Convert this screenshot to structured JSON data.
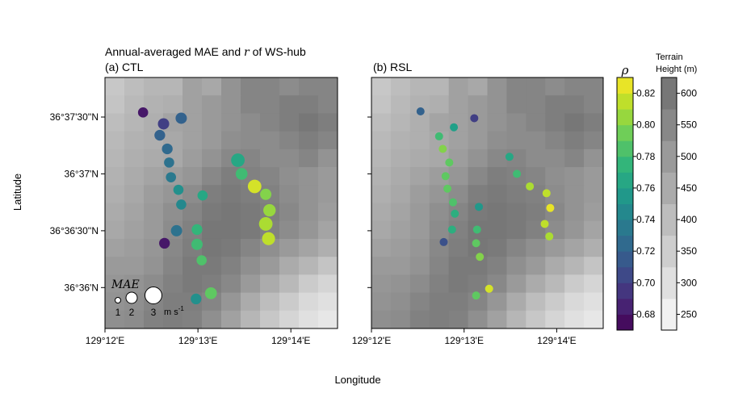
{
  "chart_data": {
    "type": "scatter",
    "title_main": "Annual-averaged MAE and ",
    "title_r": "r",
    "title_tail": " of WS-hub",
    "xlabel": "Longitude",
    "ylabel": "Latitude",
    "x_ticks": [
      "129°12'E",
      "129°13'E",
      "129°14'E"
    ],
    "x_tick_values": [
      129.2,
      129.21667,
      129.23333
    ],
    "y_ticks": [
      "36°36'N",
      "36°36'30''N",
      "36°37'N",
      "36°37'30''N"
    ],
    "y_tick_values": [
      36.6,
      36.60833,
      36.61667,
      36.625
    ],
    "xlim": [
      129.2,
      129.2417
    ],
    "ylim": [
      36.594,
      36.6308
    ],
    "panels": [
      {
        "label": "(a) CTL",
        "encoding": "marker size = MAE (m s-1), color = correlation",
        "points": [
          {
            "lon": 129.20683,
            "lat": 36.62567,
            "mae": 1.8,
            "rho": 0.68
          },
          {
            "lon": 129.21367,
            "lat": 36.62483,
            "mae": 2.0,
            "rho": 0.72
          },
          {
            "lon": 129.2105,
            "lat": 36.624,
            "mae": 2.0,
            "rho": 0.7
          },
          {
            "lon": 129.20983,
            "lat": 36.62233,
            "mae": 1.9,
            "rho": 0.72
          },
          {
            "lon": 129.21117,
            "lat": 36.62033,
            "mae": 1.9,
            "rho": 0.725
          },
          {
            "lon": 129.2115,
            "lat": 36.61833,
            "mae": 1.8,
            "rho": 0.73
          },
          {
            "lon": 129.21183,
            "lat": 36.61617,
            "mae": 1.8,
            "rho": 0.735
          },
          {
            "lon": 129.21317,
            "lat": 36.61433,
            "mae": 1.8,
            "rho": 0.75
          },
          {
            "lon": 129.21367,
            "lat": 36.61217,
            "mae": 1.8,
            "rho": 0.745
          },
          {
            "lon": 129.21283,
            "lat": 36.60833,
            "mae": 2.0,
            "rho": 0.73
          },
          {
            "lon": 129.21067,
            "lat": 36.6065,
            "mae": 1.9,
            "rho": 0.68
          },
          {
            "lon": 129.2175,
            "lat": 36.6135,
            "mae": 1.8,
            "rho": 0.765
          },
          {
            "lon": 129.2165,
            "lat": 36.6085,
            "mae": 1.9,
            "rho": 0.775
          },
          {
            "lon": 129.2165,
            "lat": 36.60633,
            "mae": 2.0,
            "rho": 0.78
          },
          {
            "lon": 129.21733,
            "lat": 36.604,
            "mae": 1.8,
            "rho": 0.785
          },
          {
            "lon": 129.219,
            "lat": 36.59917,
            "mae": 2.1,
            "rho": 0.79
          },
          {
            "lon": 129.21633,
            "lat": 36.59833,
            "mae": 1.9,
            "rho": 0.75
          },
          {
            "lon": 129.22383,
            "lat": 36.61867,
            "mae": 2.4,
            "rho": 0.765
          },
          {
            "lon": 129.2245,
            "lat": 36.61667,
            "mae": 2.1,
            "rho": 0.78
          },
          {
            "lon": 129.22683,
            "lat": 36.61483,
            "mae": 2.4,
            "rho": 0.82
          },
          {
            "lon": 129.22883,
            "lat": 36.61367,
            "mae": 2.0,
            "rho": 0.8
          },
          {
            "lon": 129.2295,
            "lat": 36.61133,
            "mae": 2.2,
            "rho": 0.805
          },
          {
            "lon": 129.22883,
            "lat": 36.60933,
            "mae": 2.4,
            "rho": 0.81
          },
          {
            "lon": 129.22933,
            "lat": 36.60717,
            "mae": 2.3,
            "rho": 0.815
          }
        ]
      },
      {
        "label": "(b) RSL",
        "encoding": "color = correlation",
        "points": [
          {
            "lon": 129.20883,
            "lat": 36.62583,
            "rho": 0.72
          },
          {
            "lon": 129.2185,
            "lat": 36.62483,
            "rho": 0.7
          },
          {
            "lon": 129.21483,
            "lat": 36.6235,
            "rho": 0.76
          },
          {
            "lon": 129.21217,
            "lat": 36.62217,
            "rho": 0.78
          },
          {
            "lon": 129.21283,
            "lat": 36.62033,
            "rho": 0.8
          },
          {
            "lon": 129.214,
            "lat": 36.61833,
            "rho": 0.79
          },
          {
            "lon": 129.21333,
            "lat": 36.61633,
            "rho": 0.79
          },
          {
            "lon": 129.21367,
            "lat": 36.6145,
            "rho": 0.79
          },
          {
            "lon": 129.21467,
            "lat": 36.6125,
            "rho": 0.785
          },
          {
            "lon": 129.215,
            "lat": 36.61083,
            "rho": 0.77
          },
          {
            "lon": 129.2145,
            "lat": 36.6085,
            "rho": 0.77
          },
          {
            "lon": 129.213,
            "lat": 36.60667,
            "rho": 0.71
          },
          {
            "lon": 129.21933,
            "lat": 36.61183,
            "rho": 0.755
          },
          {
            "lon": 129.219,
            "lat": 36.6085,
            "rho": 0.78
          },
          {
            "lon": 129.21883,
            "lat": 36.6065,
            "rho": 0.79
          },
          {
            "lon": 129.2195,
            "lat": 36.6045,
            "rho": 0.8
          },
          {
            "lon": 129.22117,
            "lat": 36.59983,
            "rho": 0.82
          },
          {
            "lon": 129.21883,
            "lat": 36.59883,
            "rho": 0.79
          },
          {
            "lon": 129.22483,
            "lat": 36.61917,
            "rho": 0.765
          },
          {
            "lon": 129.22617,
            "lat": 36.61667,
            "rho": 0.78
          },
          {
            "lon": 129.2285,
            "lat": 36.61483,
            "rho": 0.81
          },
          {
            "lon": 129.2315,
            "lat": 36.61383,
            "rho": 0.815
          },
          {
            "lon": 129.23217,
            "lat": 36.61167,
            "rho": 0.825
          },
          {
            "lon": 129.23117,
            "lat": 36.60933,
            "rho": 0.815
          },
          {
            "lon": 129.232,
            "lat": 36.6075,
            "rho": 0.81
          }
        ]
      }
    ],
    "mae_legend": {
      "title": "MAE",
      "values": [
        1,
        2,
        3
      ],
      "labels": [
        "1",
        "2",
        "3"
      ],
      "unit": "m s",
      "unit_sup": "-1"
    },
    "colorbar_rho": {
      "title": "ρ",
      "min": 0.67,
      "max": 0.83,
      "ticks": [
        0.68,
        0.7,
        0.72,
        0.74,
        0.76,
        0.78,
        0.8,
        0.82
      ],
      "tick_labels": [
        "0.68",
        "0.70",
        "0.72",
        "0.74",
        "0.76",
        "0.78",
        "0.80",
        "0.82"
      ],
      "colormap": "viridis"
    },
    "colorbar_terrain": {
      "title_line1": "Terrain",
      "title_line2": "Height (m)",
      "min": 225,
      "max": 625,
      "ticks": [
        250,
        300,
        350,
        400,
        450,
        500,
        550,
        600
      ],
      "tick_labels": [
        "250",
        "300",
        "350",
        "400",
        "450",
        "500",
        "550",
        "600"
      ],
      "colormap": "greys"
    },
    "terrain_grid": [
      [
        370,
        400,
        420,
        420,
        480,
        460,
        520,
        560,
        560,
        540,
        560,
        560
      ],
      [
        380,
        410,
        430,
        440,
        480,
        500,
        520,
        560,
        560,
        580,
        580,
        560
      ],
      [
        400,
        420,
        440,
        470,
        480,
        500,
        520,
        540,
        560,
        580,
        600,
        580
      ],
      [
        410,
        430,
        440,
        460,
        480,
        500,
        530,
        540,
        540,
        560,
        580,
        560
      ],
      [
        420,
        440,
        450,
        460,
        490,
        520,
        550,
        560,
        540,
        540,
        560,
        520
      ],
      [
        430,
        450,
        470,
        490,
        510,
        550,
        580,
        570,
        560,
        530,
        520,
        500
      ],
      [
        440,
        460,
        490,
        510,
        540,
        580,
        590,
        580,
        570,
        540,
        520,
        500
      ],
      [
        450,
        470,
        500,
        530,
        560,
        590,
        600,
        590,
        580,
        550,
        520,
        490
      ],
      [
        460,
        480,
        500,
        540,
        570,
        600,
        600,
        590,
        570,
        540,
        510,
        470
      ],
      [
        480,
        490,
        510,
        550,
        580,
        600,
        590,
        560,
        530,
        500,
        470,
        440
      ],
      [
        500,
        500,
        520,
        560,
        590,
        590,
        570,
        530,
        500,
        450,
        420,
        380
      ],
      [
        510,
        520,
        540,
        570,
        590,
        580,
        550,
        500,
        450,
        410,
        360,
        330
      ],
      [
        520,
        530,
        560,
        580,
        580,
        560,
        510,
        450,
        400,
        360,
        320,
        300
      ],
      [
        530,
        540,
        570,
        580,
        570,
        530,
        480,
        420,
        370,
        330,
        300,
        280
      ]
    ]
  }
}
